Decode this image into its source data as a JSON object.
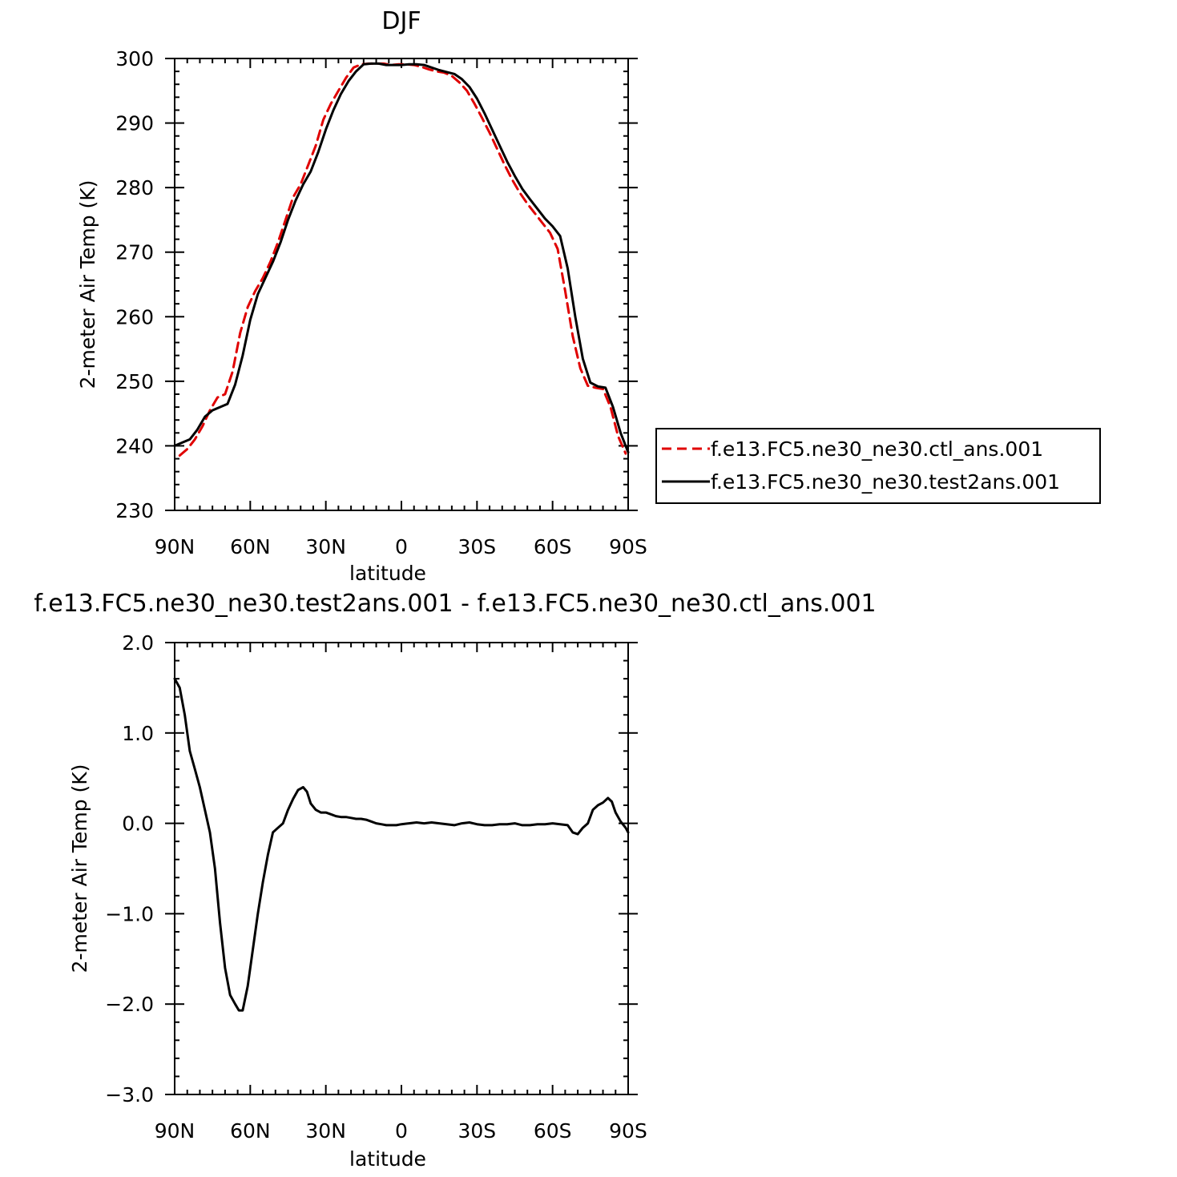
{
  "chart_data": [
    {
      "type": "line",
      "title": "DJF",
      "xlabel": "latitude",
      "ylabel": "2-meter Air Temp (K)",
      "xlim": [
        90,
        -90
      ],
      "ylim": [
        230,
        300
      ],
      "x_ticks": [
        {
          "value": 90,
          "label": "90N"
        },
        {
          "value": 60,
          "label": "60N"
        },
        {
          "value": 30,
          "label": "30N"
        },
        {
          "value": 0,
          "label": "0"
        },
        {
          "value": -30,
          "label": "30S"
        },
        {
          "value": -60,
          "label": "60S"
        },
        {
          "value": -90,
          "label": "90S"
        }
      ],
      "y_ticks": [
        {
          "value": 300,
          "label": "300"
        },
        {
          "value": 290,
          "label": "290"
        },
        {
          "value": 280,
          "label": "280"
        },
        {
          "value": 270,
          "label": "270"
        },
        {
          "value": 260,
          "label": "260"
        },
        {
          "value": 250,
          "label": "250"
        },
        {
          "value": 240,
          "label": "240"
        },
        {
          "value": 230,
          "label": "230"
        }
      ],
      "legend": {
        "position": "right"
      },
      "series": [
        {
          "name": "f.e13.FC5.ne30_ne30.ctl_ans.001",
          "color": "#e00000",
          "dashed": true,
          "x": [
            88,
            85,
            82,
            79,
            76,
            73,
            70,
            67,
            64,
            61,
            58,
            55,
            52,
            49,
            46,
            43,
            40,
            37,
            34,
            31,
            28,
            25,
            22,
            19,
            16,
            13,
            10,
            7,
            4,
            1,
            -2,
            -5,
            -8,
            -11,
            -14,
            -17,
            -20,
            -23,
            -26,
            -29,
            -32,
            -35,
            -38,
            -41,
            -44,
            -47,
            -50,
            -53,
            -56,
            -59,
            -62,
            -65,
            -68,
            -71,
            -74,
            -77,
            -80,
            -83,
            -86,
            -89
          ],
          "y": [
            238.5,
            239.5,
            241.0,
            243.0,
            245.5,
            247.5,
            248.0,
            251.5,
            257.5,
            261.5,
            264.0,
            266.0,
            268.5,
            271.5,
            275.0,
            278.5,
            280.5,
            283.5,
            286.5,
            290.5,
            293.0,
            295.0,
            297.0,
            298.6,
            299.1,
            299.2,
            299.2,
            299.2,
            299.0,
            299.1,
            299.1,
            299.0,
            298.7,
            298.3,
            298.0,
            297.8,
            297.3,
            296.3,
            295.0,
            293.0,
            290.8,
            288.5,
            286.0,
            283.5,
            281.2,
            279.2,
            277.5,
            276.0,
            274.5,
            273.0,
            270.5,
            264.0,
            257.0,
            252.0,
            249.3,
            249.0,
            248.8,
            246.0,
            241.5,
            238.8
          ]
        },
        {
          "name": "f.e13.FC5.ne30_ne30.test2ans.001",
          "color": "#000000",
          "dashed": false,
          "x": [
            90,
            87,
            84,
            81,
            78,
            75,
            72,
            69,
            66,
            63,
            60,
            57,
            54,
            51,
            48,
            45,
            42,
            39,
            36,
            33,
            30,
            27,
            24,
            21,
            18,
            15,
            12,
            9,
            6,
            3,
            0,
            -3,
            -6,
            -9,
            -12,
            -15,
            -18,
            -21,
            -24,
            -27,
            -30,
            -33,
            -36,
            -39,
            -42,
            -45,
            -48,
            -51,
            -54,
            -57,
            -60,
            -63,
            -66,
            -69,
            -72,
            -75,
            -78,
            -81,
            -84,
            -87,
            -90
          ],
          "y": [
            240.0,
            240.5,
            241.0,
            242.5,
            244.5,
            245.5,
            246.0,
            246.5,
            249.5,
            254.0,
            259.5,
            263.5,
            266.0,
            268.5,
            271.5,
            275.0,
            278.0,
            280.5,
            282.5,
            285.5,
            289.0,
            292.0,
            294.5,
            296.5,
            298.0,
            299.1,
            299.2,
            299.2,
            299.0,
            299.0,
            299.0,
            299.1,
            299.1,
            299.0,
            298.6,
            298.2,
            297.9,
            297.6,
            296.8,
            295.6,
            293.8,
            291.5,
            289.0,
            286.5,
            284.0,
            281.8,
            279.8,
            278.2,
            276.7,
            275.2,
            274.0,
            272.5,
            267.5,
            260.0,
            253.5,
            249.8,
            249.2,
            249.0,
            246.0,
            242.0,
            239.0
          ]
        }
      ]
    },
    {
      "type": "line",
      "title": "f.e13.FC5.ne30_ne30.test2ans.001 - f.e13.FC5.ne30_ne30.ctl_ans.001",
      "xlabel": "latitude",
      "ylabel": "2-meter Air Temp (K)",
      "xlim": [
        90,
        -90
      ],
      "ylim": [
        -3.0,
        2.0
      ],
      "x_ticks": [
        {
          "value": 90,
          "label": "90N"
        },
        {
          "value": 60,
          "label": "60N"
        },
        {
          "value": 30,
          "label": "30N"
        },
        {
          "value": 0,
          "label": "0"
        },
        {
          "value": -30,
          "label": "30S"
        },
        {
          "value": -60,
          "label": "60S"
        },
        {
          "value": -90,
          "label": "90S"
        }
      ],
      "y_ticks": [
        {
          "value": 2.0,
          "label": "2.0"
        },
        {
          "value": 1.0,
          "label": "1.0"
        },
        {
          "value": 0.0,
          "label": "0.0"
        },
        {
          "value": -1.0,
          "label": "−1.0"
        },
        {
          "value": -2.0,
          "label": "−2.0"
        },
        {
          "value": -3.0,
          "label": "−3.0"
        }
      ],
      "series": [
        {
          "color": "#000000",
          "dashed": false,
          "x": [
            90,
            88,
            86,
            84,
            82,
            80,
            78,
            76,
            74,
            72,
            70,
            68,
            66,
            64.5,
            63,
            61,
            59,
            57,
            55,
            53,
            51,
            49,
            47,
            45,
            43,
            41,
            39,
            37.5,
            36,
            34,
            32,
            30,
            28,
            26,
            24,
            22,
            20,
            18,
            16,
            14,
            12,
            10,
            8,
            6,
            4,
            2,
            0,
            -3,
            -6,
            -9,
            -12,
            -15,
            -18,
            -21,
            -24,
            -27,
            -30,
            -33,
            -36,
            -39,
            -42,
            -45,
            -48,
            -51,
            -54,
            -57,
            -60,
            -63,
            -66,
            -68,
            -70,
            -72,
            -74,
            -76,
            -78,
            -80,
            -82,
            -83.5,
            -85,
            -87,
            -89,
            -90
          ],
          "y": [
            1.6,
            1.5,
            1.2,
            0.8,
            0.6,
            0.4,
            0.15,
            -0.1,
            -0.5,
            -1.1,
            -1.6,
            -1.9,
            -2.0,
            -2.07,
            -2.07,
            -1.8,
            -1.4,
            -1.0,
            -0.65,
            -0.35,
            -0.1,
            -0.05,
            0.0,
            0.15,
            0.27,
            0.37,
            0.4,
            0.35,
            0.22,
            0.15,
            0.12,
            0.12,
            0.1,
            0.08,
            0.07,
            0.07,
            0.06,
            0.05,
            0.05,
            0.04,
            0.02,
            0.0,
            -0.01,
            -0.02,
            -0.02,
            -0.02,
            -0.01,
            0.0,
            0.01,
            0.0,
            0.01,
            0.0,
            -0.01,
            -0.02,
            0.0,
            0.01,
            -0.01,
            -0.02,
            -0.02,
            -0.01,
            -0.01,
            0.0,
            -0.02,
            -0.02,
            -0.01,
            -0.01,
            0.0,
            -0.01,
            -0.02,
            -0.1,
            -0.12,
            -0.05,
            0.0,
            0.15,
            0.2,
            0.23,
            0.28,
            0.24,
            0.12,
            0.02,
            -0.05,
            -0.1
          ]
        }
      ]
    }
  ]
}
